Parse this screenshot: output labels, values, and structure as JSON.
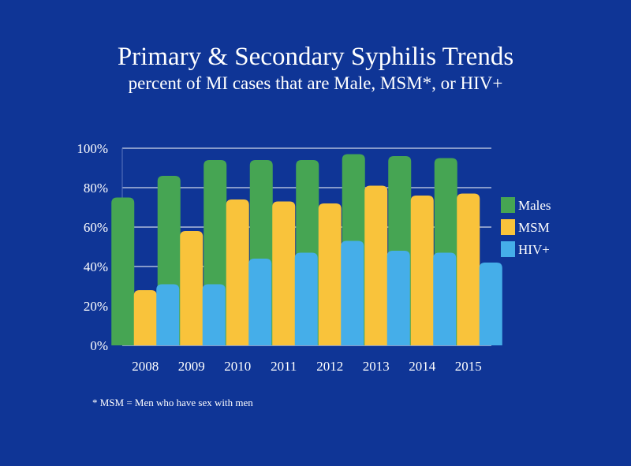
{
  "chart_data": {
    "type": "bar",
    "title": "Primary & Secondary Syphilis Trends",
    "subtitle": "percent of MI cases that are Male, MSM*, or HIV+",
    "categories": [
      "2008",
      "2009",
      "2010",
      "2011",
      "2012",
      "2013",
      "2014",
      "2015"
    ],
    "series": [
      {
        "name": "Males",
        "color": "#46a553",
        "values": [
          75,
          86,
          94,
          94,
          94,
          97,
          96,
          95
        ]
      },
      {
        "name": "MSM",
        "color": "#f9c33b",
        "values": [
          28,
          58,
          74,
          73,
          72,
          81,
          76,
          77
        ]
      },
      {
        "name": "HIV+",
        "color": "#45aee9",
        "values": [
          31,
          31,
          44,
          47,
          53,
          48,
          47,
          42
        ]
      }
    ],
    "ylim": [
      0,
      100
    ],
    "yticks": [
      "0%",
      "20%",
      "40%",
      "60%",
      "80%",
      "100%"
    ],
    "ytick_values": [
      0,
      20,
      40,
      60,
      80,
      100
    ],
    "grid": true,
    "legend": "right",
    "xlabel": "",
    "ylabel": ""
  },
  "footnote": "* MSM = Men who have sex with men"
}
